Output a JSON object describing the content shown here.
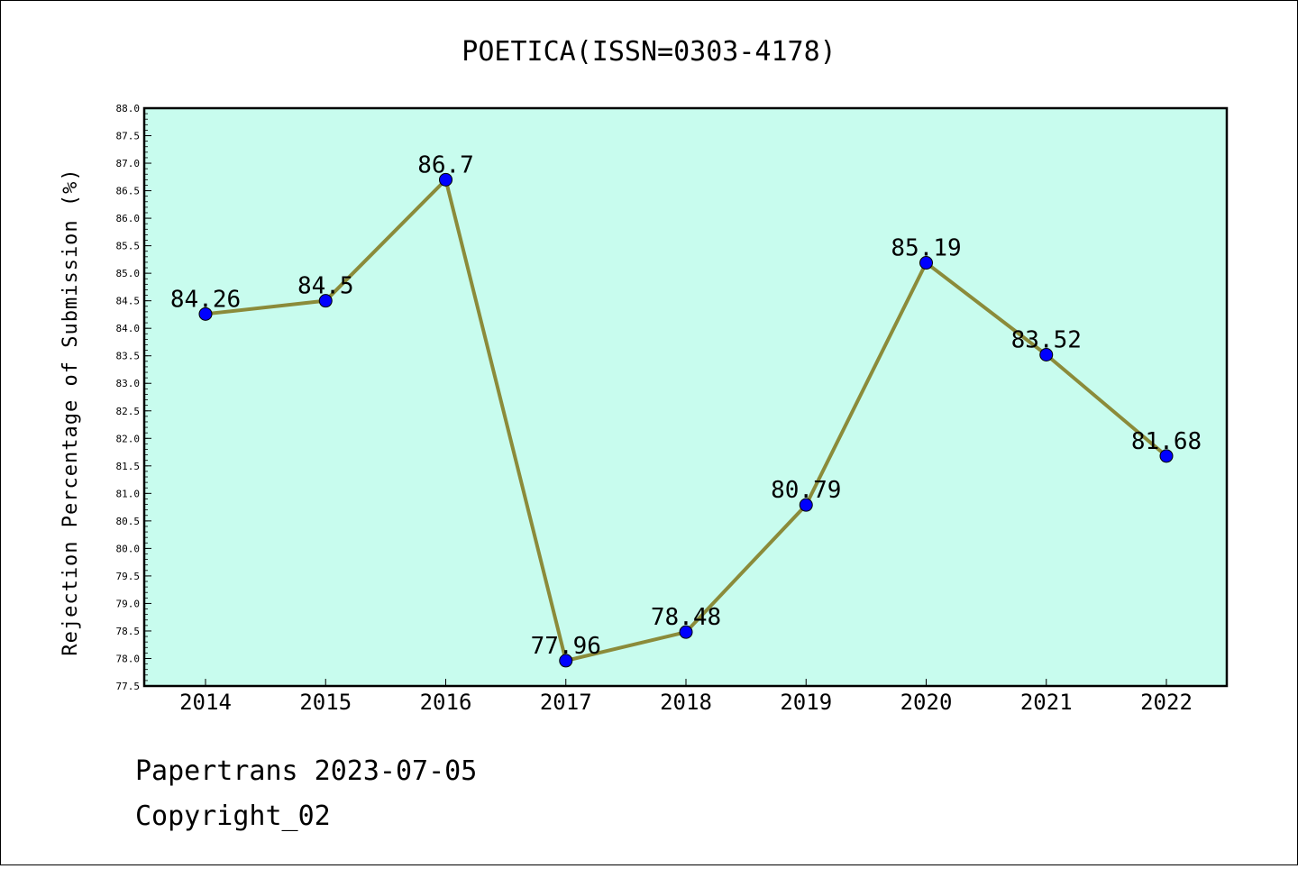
{
  "chart_data": {
    "type": "line",
    "title": "POETICA(ISSN=0303-4178)",
    "xlabel": "",
    "ylabel": "Rejection Percentage of Submission (%)",
    "categories": [
      "2014",
      "2015",
      "2016",
      "2017",
      "2018",
      "2019",
      "2020",
      "2021",
      "2022"
    ],
    "values": [
      84.26,
      84.5,
      86.7,
      77.96,
      78.48,
      80.79,
      85.19,
      83.52,
      81.68
    ],
    "data_labels": [
      "84.26",
      "84.5",
      "86.7",
      "77.96",
      "78.48",
      "80.79",
      "85.19",
      "83.52",
      "81.68"
    ],
    "ylim": [
      77.5,
      88.0
    ],
    "yticks": [
      "77.5",
      "78.0",
      "78.5",
      "79.0",
      "79.5",
      "80.0",
      "80.5",
      "81.0",
      "81.5",
      "82.0",
      "82.5",
      "83.0",
      "83.5",
      "84.0",
      "84.5",
      "85.0",
      "85.5",
      "86.0",
      "86.5",
      "87.0",
      "87.5",
      "88.0"
    ],
    "grid": false,
    "colors": {
      "plot_background": "#c8fcee",
      "line": "#8b8b3a",
      "marker": "#0000ff"
    }
  },
  "footer": {
    "line1": "Papertrans 2023-07-05",
    "line2": "Copyright_02"
  }
}
